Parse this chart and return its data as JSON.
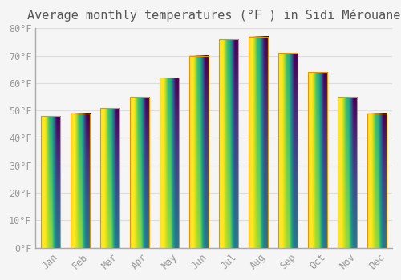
{
  "title": "Average monthly temperatures (°F ) in Sidi Mérouane",
  "months": [
    "Jan",
    "Feb",
    "Mar",
    "Apr",
    "May",
    "Jun",
    "Jul",
    "Aug",
    "Sep",
    "Oct",
    "Nov",
    "Dec"
  ],
  "values": [
    48,
    49,
    51,
    55,
    62,
    70,
    76,
    77,
    71,
    64,
    55,
    49
  ],
  "bar_color_top": "#FFD966",
  "bar_color_bottom": "#FFA500",
  "bar_edge_color": "#E69500",
  "background_color": "#F5F5F5",
  "plot_bg_color": "#FAFAFA",
  "grid_color": "#DDDDDD",
  "text_color": "#999999",
  "title_color": "#555555",
  "spine_color": "#AAAAAA",
  "ylim": [
    0,
    80
  ],
  "yticks": [
    0,
    10,
    20,
    30,
    40,
    50,
    60,
    70,
    80
  ],
  "ytick_labels": [
    "0°F",
    "10°F",
    "20°F",
    "30°F",
    "40°F",
    "50°F",
    "60°F",
    "70°F",
    "80°F"
  ],
  "title_fontsize": 11,
  "tick_fontsize": 8.5,
  "figsize": [
    5.0,
    3.5
  ],
  "dpi": 100
}
